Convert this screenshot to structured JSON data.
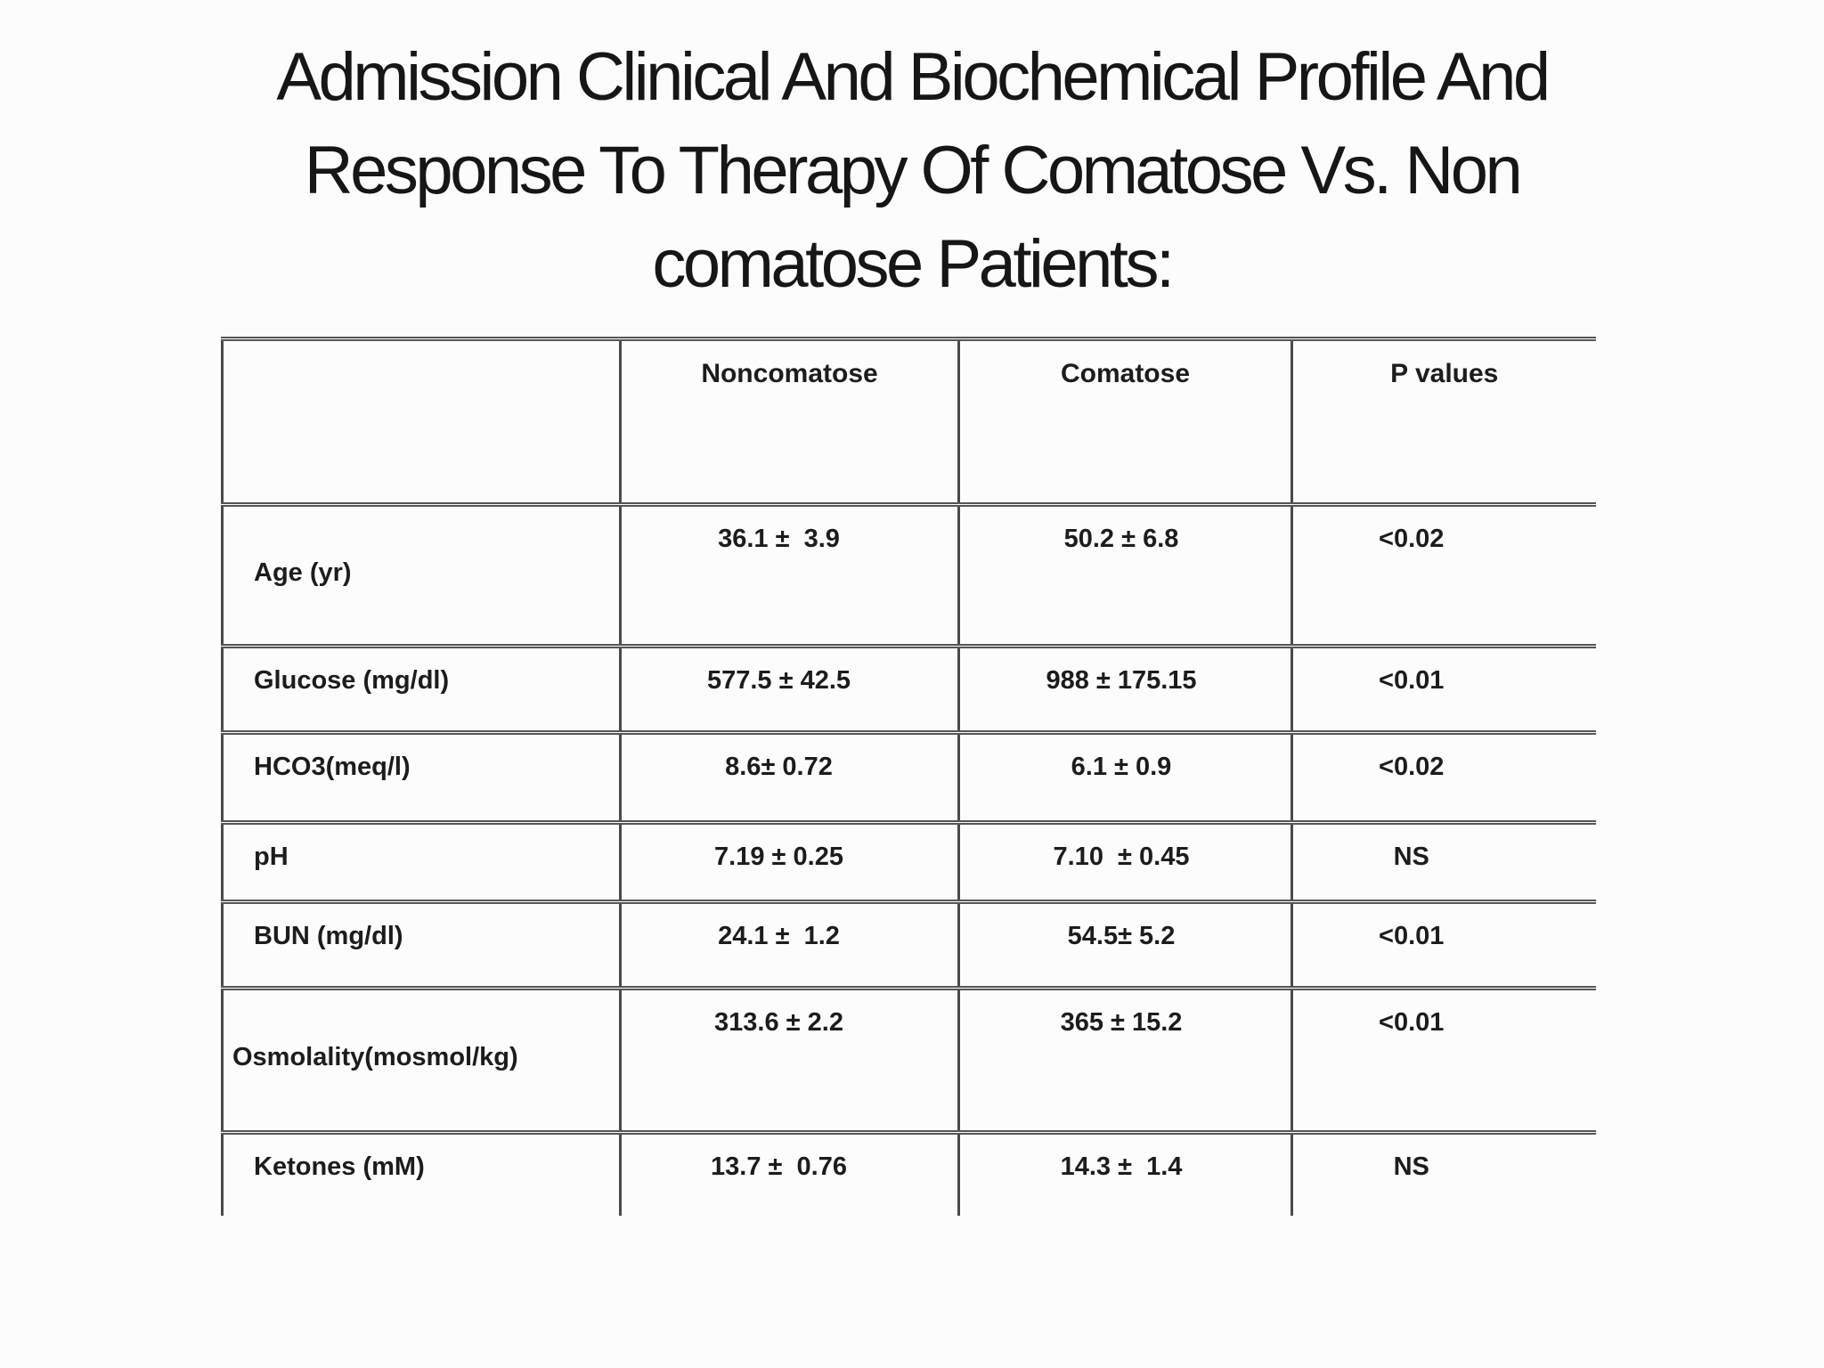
{
  "slide": {
    "title_lines": [
      "Admission Clinical And Biochemical Profile And",
      "Response To Therapy Of Comatose Vs. Non",
      "comatose Patients:"
    ]
  },
  "table": {
    "columns": [
      "",
      "Noncomatose",
      "Comatose",
      "P values"
    ],
    "rows": [
      {
        "label": "Age (yr)",
        "noncomatose": "36.1 ±  3.9",
        "comatose": "50.2 ± 6.8",
        "p": "<0.02"
      },
      {
        "label": "Glucose (mg/dl)",
        "noncomatose": "577.5 ± 42.5",
        "comatose": "988 ± 175.15",
        "p": "<0.01"
      },
      {
        "label": "HCO3(meq/l)",
        "noncomatose": "8.6± 0.72",
        "comatose": "6.1 ± 0.9",
        "p": "<0.02"
      },
      {
        "label": "pH",
        "noncomatose": "7.19 ± 0.25",
        "comatose": "7.10  ± 0.45",
        "p": "NS"
      },
      {
        "label": "BUN (mg/dl)",
        "noncomatose": "24.1 ±  1.2",
        "comatose": "54.5± 5.2",
        "p": "<0.01"
      },
      {
        "label": "Osmolality(mosmol/kg)",
        "noncomatose": "313.6 ± 2.2",
        "comatose": "365 ± 15.2",
        "p": "<0.01"
      },
      {
        "label": "Ketones (mM)",
        "noncomatose": "13.7 ±  0.76",
        "comatose": "14.3 ±  1.4",
        "p": "NS"
      }
    ]
  }
}
